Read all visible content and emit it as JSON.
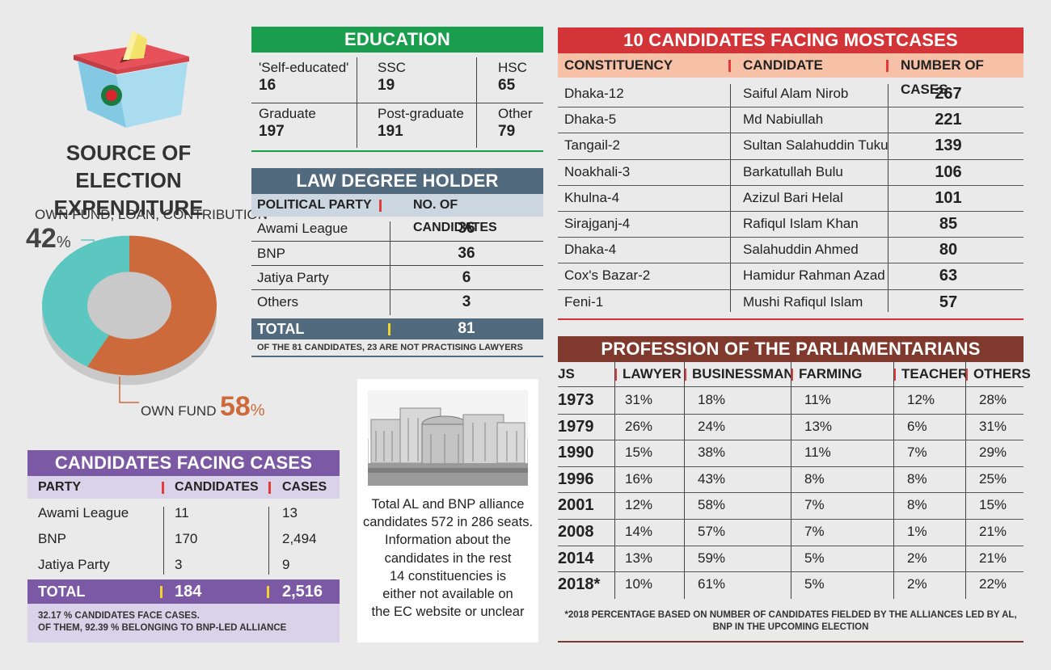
{
  "colors": {
    "education": "#1a9e4d",
    "law": "#526a7e",
    "cases10": "#d33438",
    "profession": "#7f3a2d",
    "facing": "#7c59a4",
    "own_fund": "#cc6a3c",
    "loan": "#5cc6c0"
  },
  "expenditure": {
    "title_line1": "SOURCE OF ELECTION",
    "title_line2": "EXPENDITURE",
    "loan_label": "OWN FUND, LOAN, CONTRIBUTION",
    "loan_pct": "42",
    "own_label": "OWN FUND",
    "own_pct": "58",
    "pct_sign": "%"
  },
  "chart_data": {
    "type": "pie",
    "title": "SOURCE OF ELECTION EXPENDITURE",
    "categories": [
      "OWN FUND",
      "OWN FUND, LOAN, CONTRIBUTION"
    ],
    "values": [
      58,
      42
    ]
  },
  "education": {
    "title": "EDUCATION",
    "cells": [
      {
        "label": "'Self-educated'",
        "value": "16"
      },
      {
        "label": "SSC",
        "value": "19"
      },
      {
        "label": "HSC",
        "value": "65"
      },
      {
        "label": "Graduate",
        "value": "197"
      },
      {
        "label": "Post-graduate",
        "value": "191"
      },
      {
        "label": "Other",
        "value": "79"
      }
    ]
  },
  "law": {
    "title": "LAW DEGREE HOLDER",
    "col1": "POLITICAL PARTY",
    "col2": "NO. OF CANDIDATES",
    "rows": [
      {
        "party": "Awami League",
        "n": "36"
      },
      {
        "party": "BNP",
        "n": "36"
      },
      {
        "party": "Jatiya Party",
        "n": "6"
      },
      {
        "party": "Others",
        "n": "3"
      }
    ],
    "total_label": "TOTAL",
    "total": "81",
    "note": "OF THE 81 CANDIDATES, 23 ARE NOT PRACTISING LAWYERS"
  },
  "facing": {
    "title": "CANDIDATES FACING CASES",
    "col1": "PARTY",
    "col2": "CANDIDATES",
    "col3": "CASES",
    "rows": [
      {
        "party": "Awami League",
        "candidates": "11",
        "cases": "13"
      },
      {
        "party": "BNP",
        "candidates": "170",
        "cases": "2,494"
      },
      {
        "party": "Jatiya Party",
        "candidates": "3",
        "cases": "9"
      }
    ],
    "total_label": "TOTAL",
    "total_candidates": "184",
    "total_cases": "2,516",
    "note1": "32.17 %  CANDIDATES FACE CASES.",
    "note2": "OF THEM, 92.39 % BELONGING TO BNP-LED ALLIANCE"
  },
  "info": {
    "lines": [
      "Total AL and BNP alliance",
      "candidates 572 in 286 seats.",
      "Information about the",
      "candidates in the rest",
      "14 constituencies is",
      "either not available on",
      "the EC website or unclear"
    ]
  },
  "top10": {
    "title": "10 CANDIDATES FACING MOSTCASES",
    "col1": "CONSTITUENCY",
    "col2": "CANDIDATE",
    "col3": "NUMBER OF CASES",
    "rows": [
      {
        "c": "Dhaka-12",
        "name": "Saiful Alam Nirob",
        "n": "267"
      },
      {
        "c": "Dhaka-5",
        "name": "Md Nabiullah",
        "n": "221"
      },
      {
        "c": "Tangail-2",
        "name": "Sultan Salahuddin Tuku",
        "n": "139"
      },
      {
        "c": "Noakhali-3",
        "name": "Barkatullah Bulu",
        "n": "106"
      },
      {
        "c": "Khulna-4",
        "name": "Azizul Bari Helal",
        "n": "101"
      },
      {
        "c": "Sirajganj-4",
        "name": "Rafiqul Islam Khan",
        "n": "85"
      },
      {
        "c": "Dhaka-4",
        "name": "Salahuddin Ahmed",
        "n": "80"
      },
      {
        "c": "Cox's Bazar-2",
        "name": "Hamidur Rahman Azad",
        "n": "63"
      },
      {
        "c": "Feni-1",
        "name": "Mushi Rafiqul Islam",
        "n": "57"
      }
    ]
  },
  "profession": {
    "title": "PROFESSION OF THE PARLIAMENTARIANS",
    "cols": [
      "JS",
      "LAWYER",
      "BUSINESSMAN",
      "FARMING",
      "TEACHER",
      "OTHERS"
    ],
    "rows": [
      {
        "js": "1973",
        "v": [
          "31%",
          "18%",
          "11%",
          "12%",
          "28%"
        ]
      },
      {
        "js": "1979",
        "v": [
          "26%",
          "24%",
          "13%",
          "6%",
          "31%"
        ]
      },
      {
        "js": "1990",
        "v": [
          "15%",
          "38%",
          "11%",
          "7%",
          "29%"
        ]
      },
      {
        "js": "1996",
        "v": [
          "16%",
          "43%",
          "8%",
          "8%",
          "25%"
        ]
      },
      {
        "js": "2001",
        "v": [
          "12%",
          "58%",
          "7%",
          "8%",
          "15%"
        ]
      },
      {
        "js": "2008",
        "v": [
          "14%",
          "57%",
          "7%",
          "1%",
          "21%"
        ]
      },
      {
        "js": "2014",
        "v": [
          "13%",
          "59%",
          "5%",
          "2%",
          "21%"
        ]
      },
      {
        "js": "2018*",
        "v": [
          "10%",
          "61%",
          "5%",
          "2%",
          "22%"
        ]
      }
    ],
    "note1": "*2018 PERCENTAGE BASED ON NUMBER OF CANDIDATES FIELDED BY THE ALLIANCES LED BY AL,",
    "note2": "BNP IN THE UPCOMING ELECTION"
  }
}
